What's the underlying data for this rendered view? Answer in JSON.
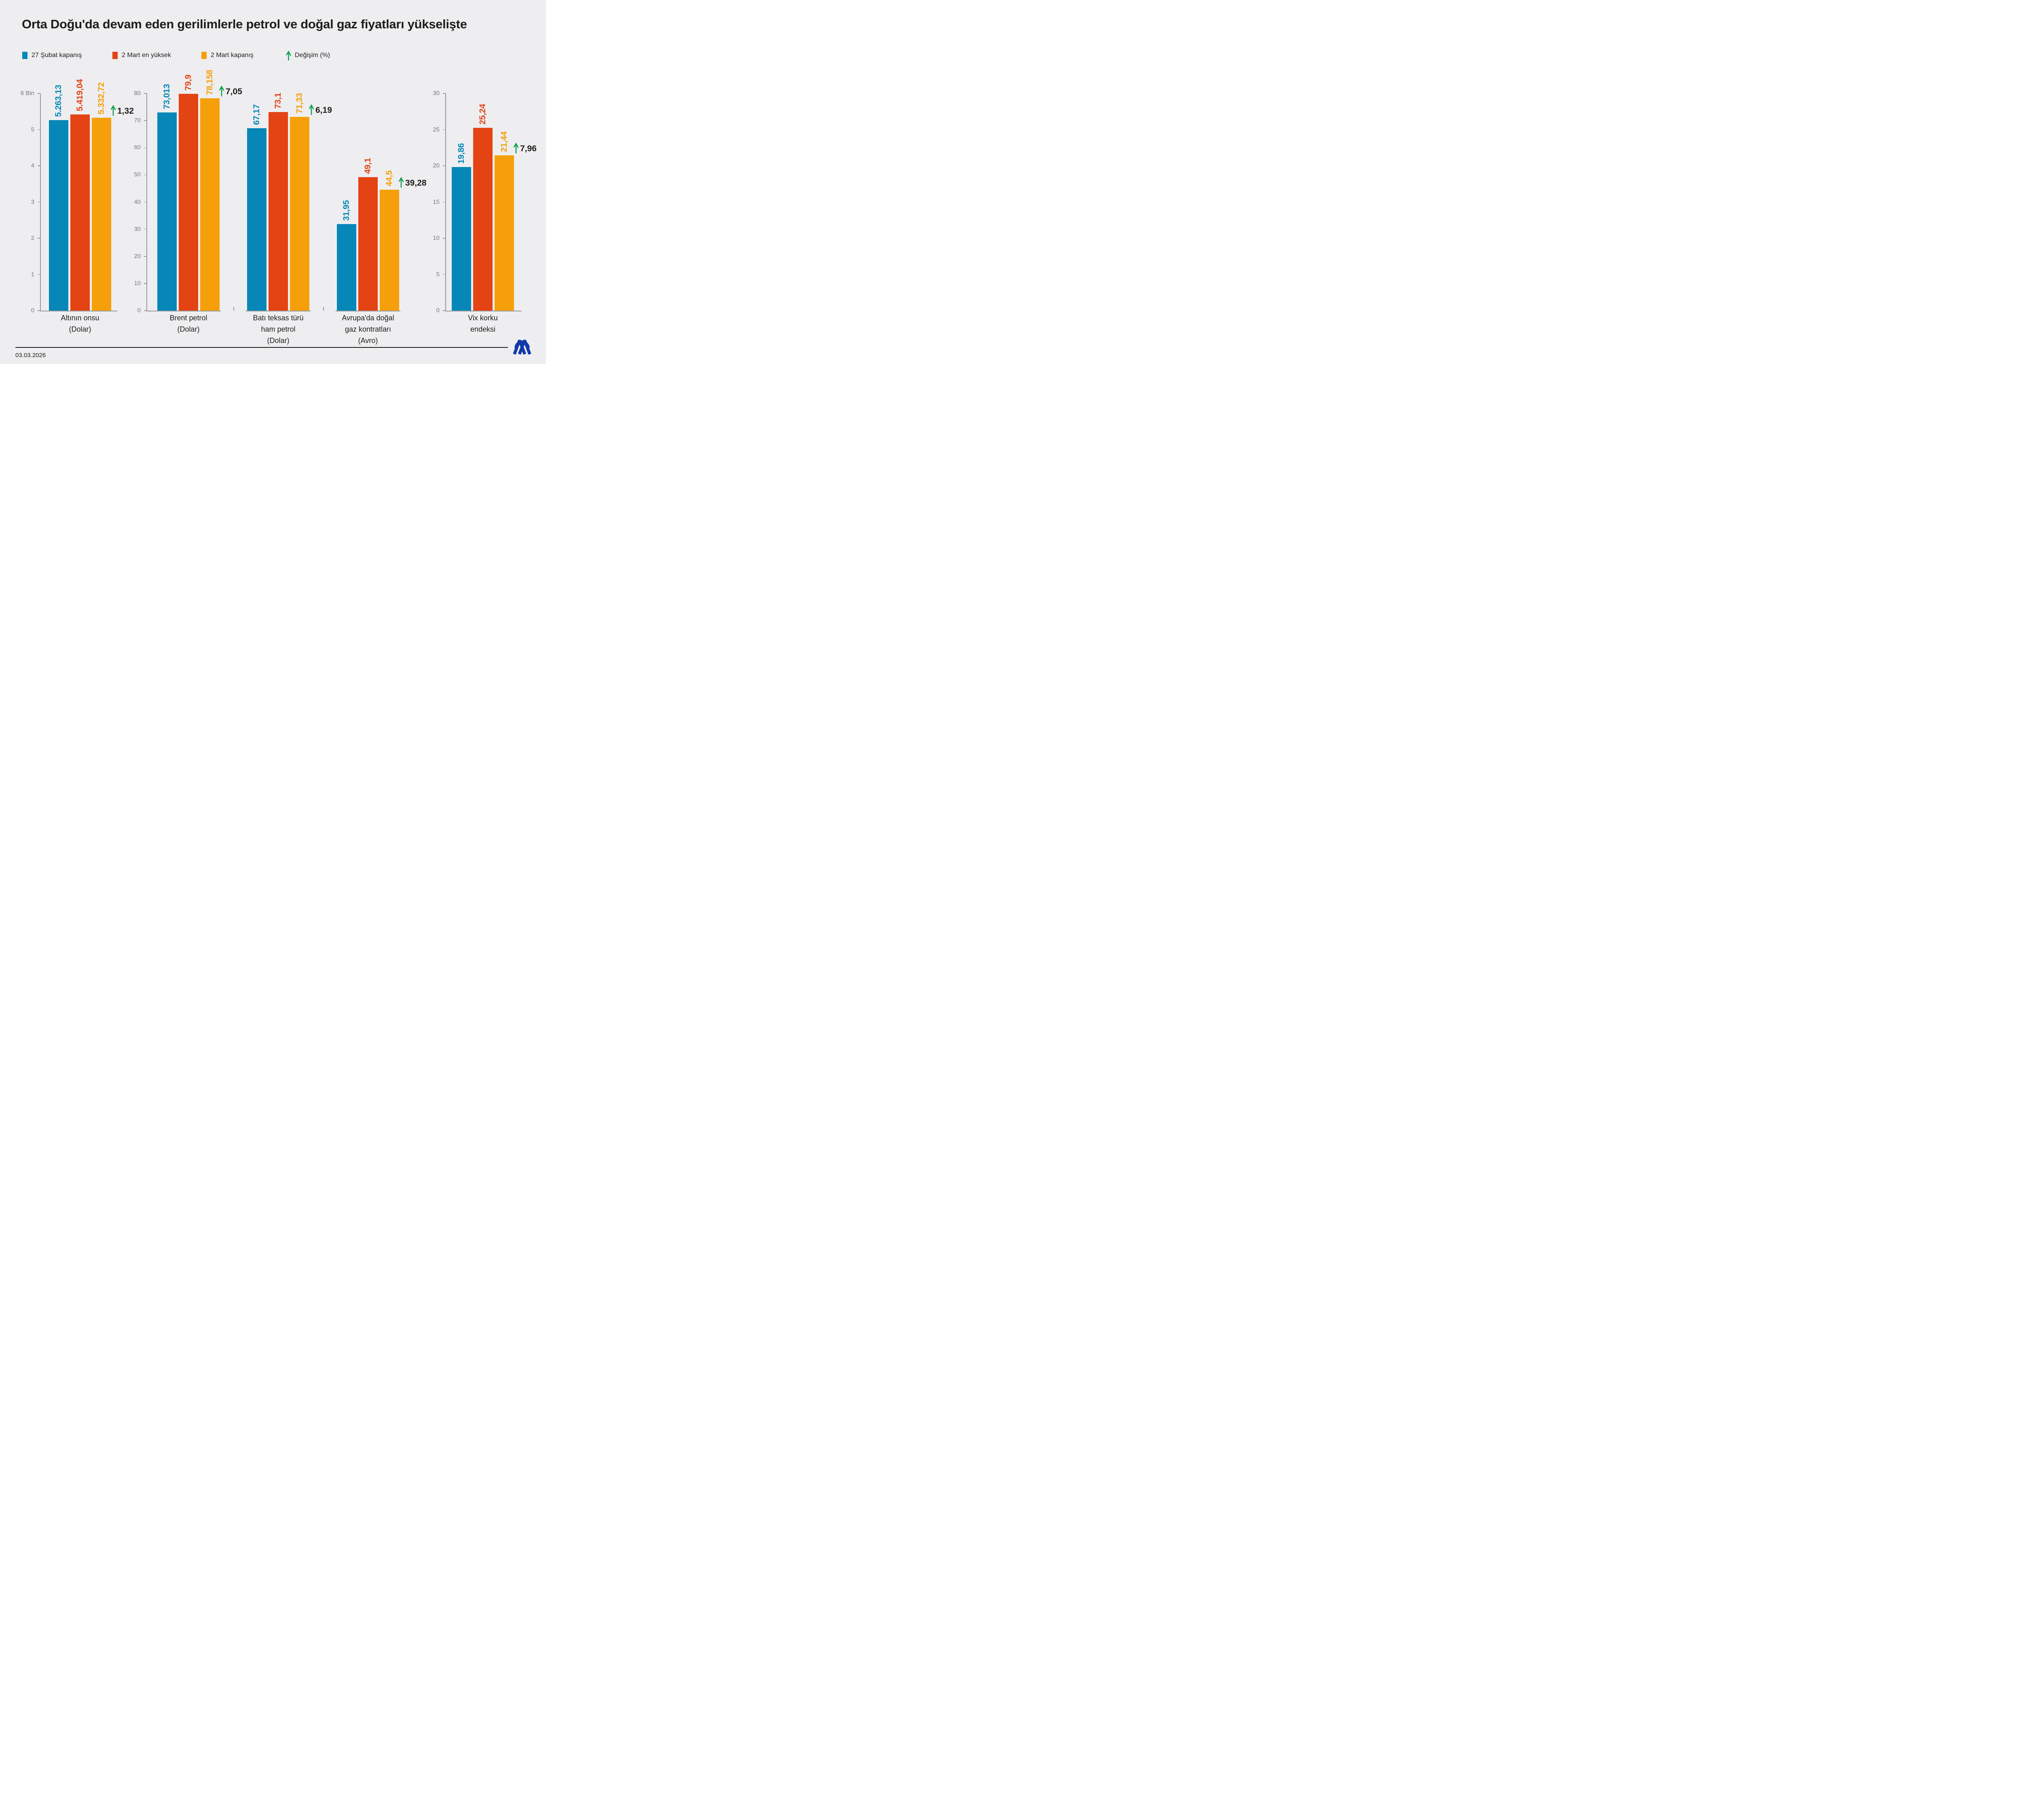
{
  "title": "Orta Doğu'da devam eden gerilimlerle petrol ve doğal gaz fiyatları yükselişte",
  "legend": {
    "items": [
      {
        "label": "27 Şubat kapanış",
        "swatch": "square",
        "color": "#0787B7"
      },
      {
        "label": "2 Mart en yüksek",
        "swatch": "square",
        "color": "#E44314"
      },
      {
        "label": "2 Mart kapanış",
        "swatch": "square",
        "color": "#F5A00A"
      },
      {
        "label": "Değişim (%)",
        "swatch": "arrow",
        "color": "#0BA24D"
      }
    ]
  },
  "footer": {
    "date": "03.03.2026",
    "logo": "anadolu-agency-logo"
  },
  "colors": {
    "background": "#EEEEF0",
    "text": "#1D1D1B",
    "axis": "#97979B",
    "tick_label": "#7A7A80",
    "change_green": "#0BA24D",
    "logo_blue": "#1238A9"
  },
  "chart_data": {
    "type": "bar",
    "series_names": [
      "27 Şubat kapanış",
      "2 Mart en yüksek",
      "2 Mart kapanış"
    ],
    "series_colors": [
      "#0787B7",
      "#E44314",
      "#F5A00A"
    ],
    "grid": false,
    "legend_position": "top",
    "panels": [
      {
        "y_max": 6000,
        "axis_ticks": [
          {
            "label": "6 Bin",
            "value": 6000
          },
          {
            "label": "5",
            "value": 5000
          },
          {
            "label": "4",
            "value": 4000
          },
          {
            "label": "3",
            "value": 3000
          },
          {
            "label": "2",
            "value": 2000
          },
          {
            "label": "1",
            "value": 1000
          },
          {
            "label": "0",
            "value": 0
          }
        ],
        "groups": [
          {
            "category_lines": [
              "Altının onsu",
              "(Dolar)"
            ],
            "values": [
              5263.13,
              5419.04,
              5332.72
            ],
            "value_labels": [
              "5.263,13",
              "5.419,04",
              "5.332,72"
            ],
            "change_label": "1,32"
          }
        ]
      },
      {
        "y_max": 80,
        "axis_ticks": [
          {
            "label": "80",
            "value": 80
          },
          {
            "label": "70",
            "value": 70
          },
          {
            "label": "60",
            "value": 60
          },
          {
            "label": "50",
            "value": 50
          },
          {
            "label": "40",
            "value": 40
          },
          {
            "label": "30",
            "value": 30
          },
          {
            "label": "20",
            "value": 20
          },
          {
            "label": "10",
            "value": 10
          },
          {
            "label": "0",
            "value": 0
          }
        ],
        "groups": [
          {
            "category_lines": [
              "Brent petrol",
              "(Dolar)"
            ],
            "values": [
              73.013,
              79.9,
              78.158
            ],
            "value_labels": [
              "73,013",
              "79,9",
              "78,158"
            ],
            "change_label": "7,05"
          },
          {
            "category_lines": [
              "Batı teksas türü",
              "ham petrol",
              "(Dolar)"
            ],
            "values": [
              67.17,
              73.1,
              71.33
            ],
            "value_labels": [
              "67,17",
              "73,1",
              "71,33"
            ],
            "change_label": "6,19"
          },
          {
            "category_lines": [
              "Avrupa'da doğal",
              "gaz kontratları",
              "(Avro)"
            ],
            "values": [
              31.95,
              49.1,
              44.5
            ],
            "value_labels": [
              "31,95",
              "49,1",
              "44,5"
            ],
            "change_label": "39,28"
          }
        ]
      },
      {
        "y_max": 30,
        "axis_ticks": [
          {
            "label": "30",
            "value": 30
          },
          {
            "label": "25",
            "value": 25
          },
          {
            "label": "20",
            "value": 20
          },
          {
            "label": "15",
            "value": 15
          },
          {
            "label": "10",
            "value": 10
          },
          {
            "label": "5",
            "value": 5
          },
          {
            "label": "0",
            "value": 0
          }
        ],
        "groups": [
          {
            "category_lines": [
              "Vix korku",
              "endeksi"
            ],
            "values": [
              19.86,
              25.24,
              21.44
            ],
            "value_labels": [
              "19,86",
              "25,24",
              "21,44"
            ],
            "change_label": "7,96"
          }
        ]
      }
    ]
  }
}
